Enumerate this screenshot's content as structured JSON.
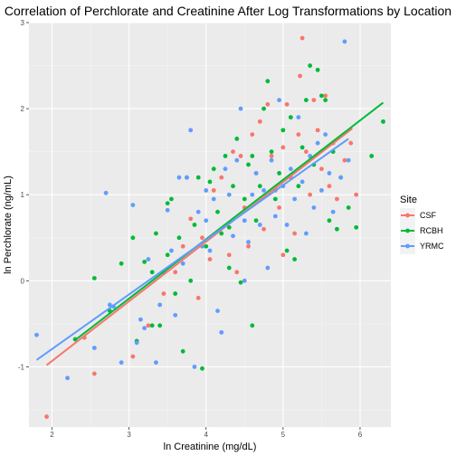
{
  "chart_data": {
    "type": "scatter",
    "title": "Correlation of Perchlorate and Creatinine After Log Transformations by Location",
    "xlabel": "ln Creatinine (mg/dL)",
    "ylabel": "ln Perchlorate (ng/mL)",
    "xlim": [
      1.7,
      6.4
    ],
    "ylim": [
      -1.7,
      3.0
    ],
    "x_ticks": [
      "2",
      "3",
      "4",
      "5",
      "6"
    ],
    "y_ticks": [
      "-1",
      "0",
      "1",
      "2",
      "3"
    ],
    "grid": true,
    "legend": {
      "title": "Site",
      "placement": "right"
    },
    "series": [
      {
        "name": "CSF",
        "color": "#F8766D",
        "fit": {
          "x": [
            1.93,
            5.9
          ],
          "y": [
            -0.98,
            1.77
          ]
        },
        "points": [
          [
            1.93,
            -1.58
          ],
          [
            2.55,
            -1.08
          ],
          [
            2.42,
            -0.66
          ],
          [
            3.05,
            -0.88
          ],
          [
            3.25,
            -0.52
          ],
          [
            3.45,
            -0.15
          ],
          [
            3.6,
            0.1
          ],
          [
            3.7,
            0.4
          ],
          [
            3.8,
            0.72
          ],
          [
            3.95,
            0.5
          ],
          [
            4.05,
            0.25
          ],
          [
            4.1,
            1.05
          ],
          [
            4.2,
            1.2
          ],
          [
            4.3,
            0.3
          ],
          [
            4.35,
            1.5
          ],
          [
            4.45,
            1.45
          ],
          [
            4.5,
            0.85
          ],
          [
            4.6,
            1.7
          ],
          [
            4.65,
            1.25
          ],
          [
            4.7,
            1.85
          ],
          [
            4.75,
            0.6
          ],
          [
            4.8,
            2.05
          ],
          [
            4.85,
            1.45
          ],
          [
            4.9,
            1.05
          ],
          [
            4.95,
            0.85
          ],
          [
            5.0,
            1.55
          ],
          [
            5.05,
            2.05
          ],
          [
            5.1,
            1.2
          ],
          [
            5.15,
            0.55
          ],
          [
            5.2,
            1.7
          ],
          [
            5.22,
            2.38
          ],
          [
            5.25,
            2.82
          ],
          [
            5.3,
            1.5
          ],
          [
            5.35,
            1.0
          ],
          [
            5.4,
            2.1
          ],
          [
            5.45,
            1.75
          ],
          [
            5.5,
            1.3
          ],
          [
            5.55,
            2.15
          ],
          [
            5.6,
            1.1
          ],
          [
            5.65,
            1.6
          ],
          [
            5.7,
            0.95
          ],
          [
            5.8,
            1.4
          ],
          [
            5.88,
            1.6
          ],
          [
            5.95,
            1.0
          ],
          [
            4.4,
            0.1
          ],
          [
            3.9,
            -0.2
          ],
          [
            4.55,
            0.4
          ],
          [
            5.0,
            0.3
          ]
        ]
      },
      {
        "name": "RCBH",
        "color": "#00BA38",
        "fit": {
          "x": [
            2.3,
            6.3
          ],
          "y": [
            -0.69,
            2.07
          ]
        },
        "points": [
          [
            2.3,
            -0.68
          ],
          [
            2.55,
            0.03
          ],
          [
            2.75,
            -0.35
          ],
          [
            2.9,
            0.2
          ],
          [
            3.05,
            0.5
          ],
          [
            3.1,
            -0.7
          ],
          [
            3.2,
            0.22
          ],
          [
            3.3,
            -0.52
          ],
          [
            3.35,
            0.55
          ],
          [
            3.4,
            -0.52
          ],
          [
            3.5,
            0.3
          ],
          [
            3.5,
            0.9
          ],
          [
            3.55,
            0.95
          ],
          [
            3.6,
            -0.15
          ],
          [
            3.65,
            0.5
          ],
          [
            3.7,
            -0.82
          ],
          [
            3.75,
            1.2
          ],
          [
            3.8,
            0.0
          ],
          [
            3.85,
            0.65
          ],
          [
            3.9,
            1.2
          ],
          [
            3.95,
            -1.02
          ],
          [
            4.0,
            0.4
          ],
          [
            4.05,
            1.15
          ],
          [
            4.1,
            1.3
          ],
          [
            4.15,
            0.8
          ],
          [
            4.2,
            0.55
          ],
          [
            4.25,
            1.45
          ],
          [
            4.3,
            0.15
          ],
          [
            4.35,
            1.1
          ],
          [
            4.4,
            1.65
          ],
          [
            4.45,
            -0.02
          ],
          [
            4.5,
            0.95
          ],
          [
            4.55,
            1.35
          ],
          [
            4.6,
            -0.52
          ],
          [
            4.6,
            1.45
          ],
          [
            4.65,
            0.7
          ],
          [
            4.7,
            1.1
          ],
          [
            4.75,
            2.0
          ],
          [
            4.8,
            2.32
          ],
          [
            4.85,
            1.5
          ],
          [
            4.9,
            0.95
          ],
          [
            4.95,
            1.25
          ],
          [
            5.0,
            1.75
          ],
          [
            5.05,
            0.35
          ],
          [
            5.1,
            1.9
          ],
          [
            5.15,
            0.25
          ],
          [
            5.2,
            1.1
          ],
          [
            5.25,
            1.55
          ],
          [
            5.3,
            2.1
          ],
          [
            5.35,
            2.5
          ],
          [
            5.4,
            1.35
          ],
          [
            5.45,
            2.45
          ],
          [
            5.5,
            2.15
          ],
          [
            5.55,
            2.1
          ],
          [
            5.6,
            0.7
          ],
          [
            5.65,
            1.5
          ],
          [
            5.7,
            0.6
          ],
          [
            5.75,
            1.2
          ],
          [
            5.85,
            0.85
          ],
          [
            5.95,
            0.62
          ],
          [
            6.15,
            1.45
          ],
          [
            6.3,
            1.85
          ],
          [
            4.3,
            0.62
          ],
          [
            3.3,
            0.1
          ]
        ]
      },
      {
        "name": "YRMC",
        "color": "#619CFF",
        "fit": {
          "x": [
            1.8,
            5.85
          ],
          "y": [
            -0.92,
            1.65
          ]
        },
        "points": [
          [
            1.8,
            -0.63
          ],
          [
            2.2,
            -1.13
          ],
          [
            2.55,
            -0.78
          ],
          [
            2.7,
            1.02
          ],
          [
            2.75,
            -0.28
          ],
          [
            2.8,
            -0.3
          ],
          [
            2.9,
            -0.95
          ],
          [
            3.05,
            0.88
          ],
          [
            3.1,
            -0.72
          ],
          [
            3.15,
            -0.45
          ],
          [
            3.2,
            -0.55
          ],
          [
            3.25,
            0.25
          ],
          [
            3.35,
            -0.95
          ],
          [
            3.4,
            -0.28
          ],
          [
            3.45,
            0.1
          ],
          [
            3.5,
            0.82
          ],
          [
            3.55,
            0.35
          ],
          [
            3.6,
            -0.4
          ],
          [
            3.65,
            1.2
          ],
          [
            3.7,
            0.2
          ],
          [
            3.75,
            1.2
          ],
          [
            3.8,
            1.75
          ],
          [
            3.85,
            -1.0
          ],
          [
            3.9,
            0.8
          ],
          [
            3.95,
            0.4
          ],
          [
            4.0,
            1.05
          ],
          [
            4.05,
            0.35
          ],
          [
            4.1,
            0.95
          ],
          [
            4.15,
            -0.35
          ],
          [
            4.2,
            -0.6
          ],
          [
            4.25,
            1.3
          ],
          [
            4.3,
            1.0
          ],
          [
            4.35,
            0.52
          ],
          [
            4.4,
            1.4
          ],
          [
            4.45,
            2.0
          ],
          [
            4.5,
            0.7
          ],
          [
            4.55,
            0.45
          ],
          [
            4.6,
            1.0
          ],
          [
            4.65,
            1.25
          ],
          [
            4.7,
            0.65
          ],
          [
            4.75,
            1.05
          ],
          [
            4.8,
            0.15
          ],
          [
            4.85,
            1.4
          ],
          [
            4.9,
            0.75
          ],
          [
            4.95,
            2.1
          ],
          [
            5.0,
            1.1
          ],
          [
            5.05,
            0.65
          ],
          [
            5.1,
            1.3
          ],
          [
            5.15,
            0.95
          ],
          [
            5.2,
            1.9
          ],
          [
            5.25,
            1.15
          ],
          [
            5.3,
            0.55
          ],
          [
            5.35,
            1.45
          ],
          [
            5.4,
            0.85
          ],
          [
            5.45,
            1.6
          ],
          [
            5.5,
            1.05
          ],
          [
            5.55,
            1.7
          ],
          [
            5.6,
            1.25
          ],
          [
            5.65,
            0.8
          ],
          [
            5.75,
            1.2
          ],
          [
            5.8,
            2.78
          ],
          [
            5.85,
            1.4
          ],
          [
            4.5,
            0.0
          ],
          [
            4.0,
            0.7
          ]
        ]
      }
    ]
  }
}
